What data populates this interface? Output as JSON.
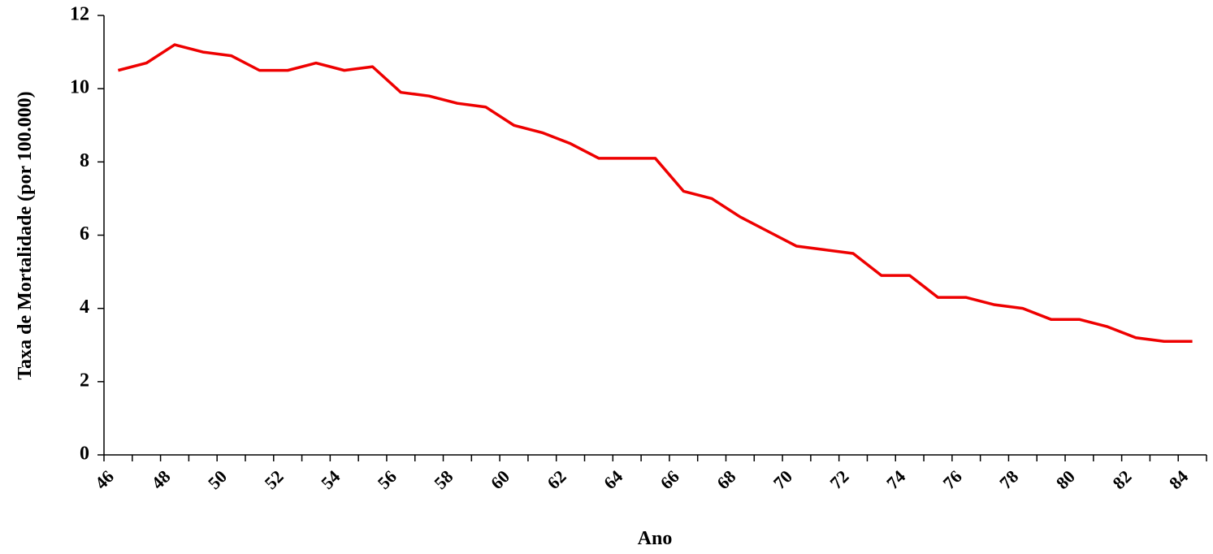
{
  "chart_data": {
    "type": "line",
    "xlabel": "Ano",
    "ylabel": "Taxa de Mortalidade  (por 100.000)",
    "categories": [
      "46",
      null,
      "48",
      null,
      "50",
      null,
      "52",
      null,
      "54",
      null,
      "56",
      null,
      "58",
      null,
      "60",
      null,
      "62",
      null,
      "64",
      null,
      "66",
      null,
      "68",
      null,
      "70",
      null,
      "72",
      null,
      "74",
      null,
      "76",
      null,
      "78",
      null,
      "80",
      null,
      "82",
      null,
      "84"
    ],
    "series": [
      {
        "name": "Taxa de Mortalidade",
        "color": "#ee0000",
        "values": [
          10.5,
          10.7,
          11.2,
          11.0,
          10.9,
          10.5,
          10.5,
          10.7,
          10.5,
          10.6,
          9.9,
          9.8,
          9.6,
          9.5,
          9.0,
          8.8,
          8.5,
          8.1,
          8.1,
          8.1,
          7.2,
          7.0,
          6.5,
          6.1,
          5.7,
          5.6,
          5.5,
          4.9,
          4.9,
          4.3,
          4.3,
          4.1,
          4.0,
          3.7,
          3.7,
          3.5,
          3.2,
          3.1,
          3.1
        ]
      }
    ],
    "ylim": [
      0,
      12
    ],
    "yticks": [
      0,
      2,
      4,
      6,
      8,
      10,
      12
    ]
  }
}
